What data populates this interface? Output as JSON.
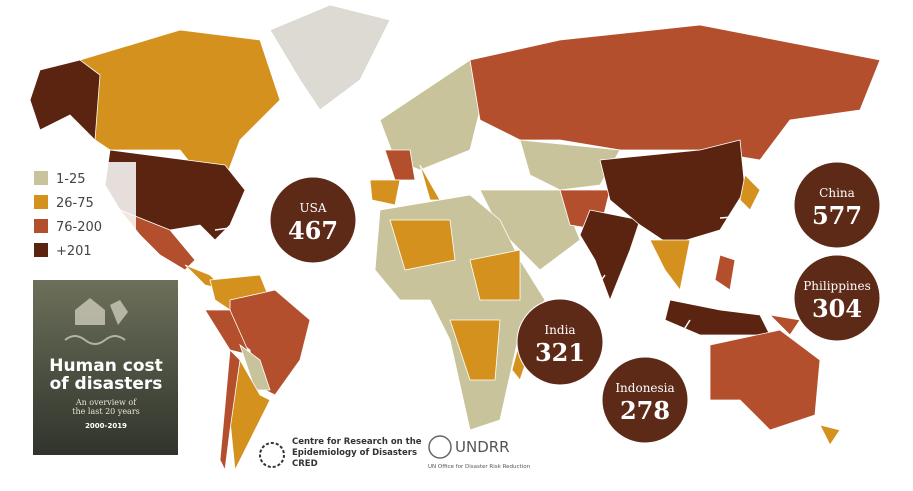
{
  "legend": {
    "items": [
      {
        "label": "1-25",
        "color": "#c8c39b"
      },
      {
        "label": "26-75",
        "color": "#d4911d"
      },
      {
        "label": "76-200",
        "color": "#b44f2d"
      },
      {
        "label": "+201",
        "color": "#5b2410"
      }
    ]
  },
  "callouts": [
    {
      "country": "USA",
      "value": 467
    },
    {
      "country": "China",
      "value": 577
    },
    {
      "country": "Philippines",
      "value": 304
    },
    {
      "country": "India",
      "value": 321
    },
    {
      "country": "Indonesia",
      "value": 278
    }
  ],
  "cover": {
    "title": [
      "Human cost",
      "of disasters"
    ],
    "subtitle": [
      "An overview of",
      "the last 20 years"
    ],
    "years": "2000-2019"
  },
  "logos": {
    "cred": [
      "Centre for Research on the",
      "Epidemiology of Disasters",
      "CRED"
    ],
    "undrr": "UNDRR",
    "undrr_sub": "UN Office for Disaster Risk Reduction"
  }
}
